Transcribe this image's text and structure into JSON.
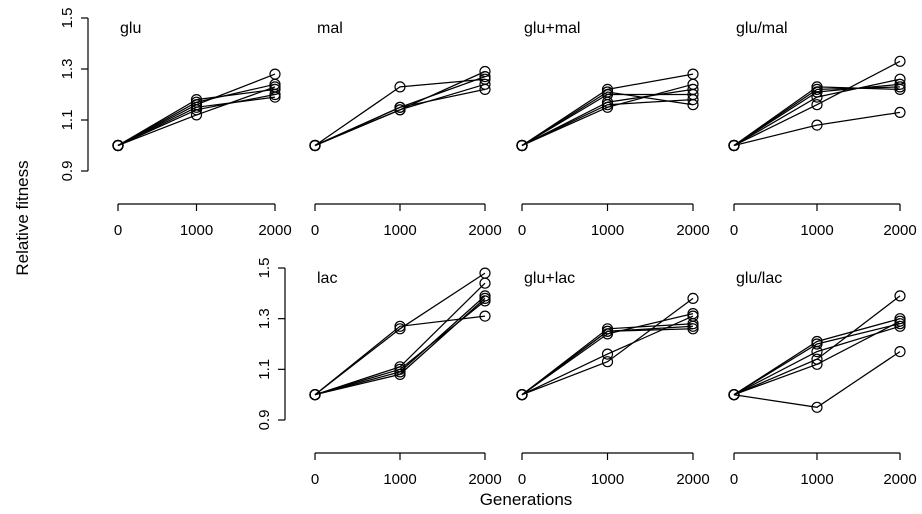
{
  "figure": {
    "xlabel": "Generations",
    "ylabel": "Relative fitness"
  },
  "chart_data": [
    {
      "type": "line",
      "panel": "glu",
      "x": [
        0,
        1000,
        2000
      ],
      "xticks": [
        0,
        1000,
        2000
      ],
      "yticks": [
        0.9,
        1.1,
        1.3,
        1.5
      ],
      "ylim": [
        0.9,
        1.5
      ],
      "series": [
        {
          "values": [
            1.0,
            1.16,
            1.28
          ]
        },
        {
          "values": [
            1.0,
            1.12,
            1.23
          ]
        },
        {
          "values": [
            1.0,
            1.18,
            1.22
          ]
        },
        {
          "values": [
            1.0,
            1.15,
            1.19
          ]
        },
        {
          "values": [
            1.0,
            1.14,
            1.2
          ]
        },
        {
          "values": [
            1.0,
            1.17,
            1.24
          ]
        }
      ]
    },
    {
      "type": "line",
      "panel": "mal",
      "x": [
        0,
        1000,
        2000
      ],
      "xticks": [
        0,
        1000,
        2000
      ],
      "ylim": [
        0.9,
        1.5
      ],
      "series": [
        {
          "values": [
            1.0,
            1.23,
            1.26
          ]
        },
        {
          "values": [
            1.0,
            1.14,
            1.29
          ]
        },
        {
          "values": [
            1.0,
            1.15,
            1.27
          ]
        },
        {
          "values": [
            1.0,
            1.15,
            1.22
          ]
        },
        {
          "values": [
            1.0,
            1.14,
            1.24
          ]
        }
      ]
    },
    {
      "type": "line",
      "panel": "glu+mal",
      "x": [
        0,
        1000,
        2000
      ],
      "xticks": [
        0,
        1000,
        2000
      ],
      "ylim": [
        0.9,
        1.5
      ],
      "series": [
        {
          "values": [
            1.0,
            1.22,
            1.28
          ]
        },
        {
          "values": [
            1.0,
            1.21,
            1.16
          ]
        },
        {
          "values": [
            1.0,
            1.17,
            1.22
          ]
        },
        {
          "values": [
            1.0,
            1.16,
            1.18
          ]
        },
        {
          "values": [
            1.0,
            1.2,
            1.2
          ]
        },
        {
          "values": [
            1.0,
            1.15,
            1.24
          ]
        }
      ]
    },
    {
      "type": "line",
      "panel": "glu/mal",
      "x": [
        0,
        1000,
        2000
      ],
      "xticks": [
        0,
        1000,
        2000
      ],
      "ylim": [
        0.9,
        1.5
      ],
      "series": [
        {
          "values": [
            1.0,
            1.08,
            1.13
          ]
        },
        {
          "values": [
            1.0,
            1.16,
            1.33
          ]
        },
        {
          "values": [
            1.0,
            1.19,
            1.26
          ]
        },
        {
          "values": [
            1.0,
            1.22,
            1.23
          ]
        },
        {
          "values": [
            1.0,
            1.21,
            1.24
          ]
        },
        {
          "values": [
            1.0,
            1.23,
            1.22
          ]
        }
      ]
    },
    {
      "type": "line",
      "panel": "lac",
      "x": [
        0,
        1000,
        2000
      ],
      "xticks": [
        0,
        1000,
        2000
      ],
      "yticks": [
        0.9,
        1.1,
        1.3,
        1.5
      ],
      "ylim": [
        0.9,
        1.5
      ],
      "series": [
        {
          "values": [
            1.0,
            1.27,
            1.31
          ]
        },
        {
          "values": [
            1.0,
            1.26,
            1.48
          ]
        },
        {
          "values": [
            1.0,
            1.11,
            1.44
          ]
        },
        {
          "values": [
            1.0,
            1.09,
            1.39
          ]
        },
        {
          "values": [
            1.0,
            1.1,
            1.37
          ]
        },
        {
          "values": [
            1.0,
            1.08,
            1.38
          ]
        }
      ]
    },
    {
      "type": "line",
      "panel": "glu+lac",
      "x": [
        0,
        1000,
        2000
      ],
      "xticks": [
        0,
        1000,
        2000
      ],
      "ylim": [
        0.9,
        1.5
      ],
      "series": [
        {
          "values": [
            1.0,
            1.13,
            1.38
          ]
        },
        {
          "values": [
            1.0,
            1.16,
            1.31
          ]
        },
        {
          "values": [
            1.0,
            1.25,
            1.26
          ]
        },
        {
          "values": [
            1.0,
            1.26,
            1.28
          ]
        },
        {
          "values": [
            1.0,
            1.24,
            1.32
          ]
        },
        {
          "values": [
            1.0,
            1.25,
            1.27
          ]
        }
      ]
    },
    {
      "type": "line",
      "panel": "glu/lac",
      "x": [
        0,
        1000,
        2000
      ],
      "xticks": [
        0,
        1000,
        2000
      ],
      "ylim": [
        0.9,
        1.5
      ],
      "series": [
        {
          "values": [
            1.0,
            0.95,
            1.17
          ]
        },
        {
          "values": [
            1.0,
            1.12,
            1.29
          ]
        },
        {
          "values": [
            1.0,
            1.14,
            1.39
          ]
        },
        {
          "values": [
            1.0,
            1.17,
            1.27
          ]
        },
        {
          "values": [
            1.0,
            1.2,
            1.28
          ]
        },
        {
          "values": [
            1.0,
            1.21,
            1.3
          ]
        }
      ]
    }
  ]
}
